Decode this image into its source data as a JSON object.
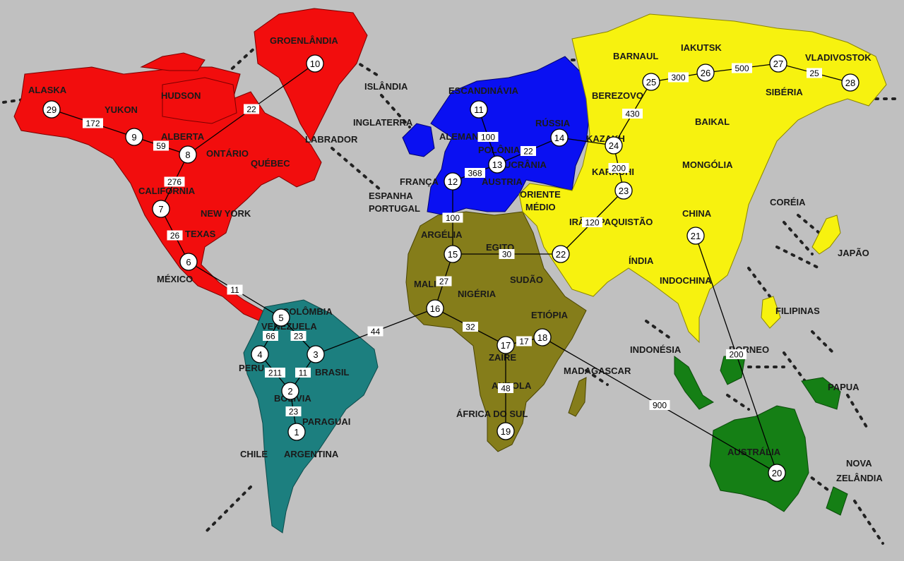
{
  "colors": {
    "ocean": "#c0c0c0",
    "north_america": "#f20d0d",
    "south_america": "#1c7f7f",
    "europe": "#0a10f2",
    "africa": "#857d1a",
    "asia": "#f7f20f",
    "oceania": "#157f15",
    "label_text": "#1a1a1a",
    "route_line": "#000000",
    "node_fill": "#ffffff"
  },
  "territories": [
    {
      "id": "alaska",
      "label": "ALASKA"
    },
    {
      "id": "yukon",
      "label": "YUKON"
    },
    {
      "id": "hudson",
      "label": "HUDSON"
    },
    {
      "id": "groenlandia",
      "label": "GROENLÂNDIA"
    },
    {
      "id": "alberta",
      "label": "ALBERTA"
    },
    {
      "id": "ontario",
      "label": "ONTÁRIO"
    },
    {
      "id": "quebec",
      "label": "QUÉBEC"
    },
    {
      "id": "labrador",
      "label": "LABRADOR"
    },
    {
      "id": "california",
      "label": "CALIFÓRNIA"
    },
    {
      "id": "new_york",
      "label": "NEW YORK"
    },
    {
      "id": "texas",
      "label": "TEXAS"
    },
    {
      "id": "mexico",
      "label": "MÉXICO"
    },
    {
      "id": "colombia",
      "label": "COLÔMBIA"
    },
    {
      "id": "venezuela",
      "label": "VENEZUELA"
    },
    {
      "id": "peru",
      "label": "PERU"
    },
    {
      "id": "brasil",
      "label": "BRASIL"
    },
    {
      "id": "bolivia",
      "label": "BOLÍVIA"
    },
    {
      "id": "paraguai",
      "label": "PARAGUAI"
    },
    {
      "id": "chile",
      "label": "CHILE"
    },
    {
      "id": "argentina",
      "label": "ARGENTINA"
    },
    {
      "id": "islandia",
      "label": "ISLÂNDIA"
    },
    {
      "id": "inglaterra",
      "label": "INGLATERRA"
    },
    {
      "id": "escandinavia",
      "label": "ESCANDINÁVIA"
    },
    {
      "id": "alemanha",
      "label": "ALEMANHA"
    },
    {
      "id": "polonia",
      "label": "POLÔNIA"
    },
    {
      "id": "ucrania",
      "label": "UCRÂNIA"
    },
    {
      "id": "austria",
      "label": "ÁUSTRIA"
    },
    {
      "id": "franca",
      "label": "FRANÇA"
    },
    {
      "id": "espanha",
      "label": "ESPANHA"
    },
    {
      "id": "portugal",
      "label": "PORTUGAL"
    },
    {
      "id": "russia",
      "label": "RÚSSIA"
    },
    {
      "id": "argelia",
      "label": "ARGÉLIA"
    },
    {
      "id": "egito",
      "label": "EGITO"
    },
    {
      "id": "mali",
      "label": "MALI"
    },
    {
      "id": "nigeria",
      "label": "NIGÉRIA"
    },
    {
      "id": "sudao",
      "label": "SUDÃO"
    },
    {
      "id": "etiopia",
      "label": "ETIÓPIA"
    },
    {
      "id": "zaire",
      "label": "ZAIRE"
    },
    {
      "id": "angola",
      "label": "ANGOLA"
    },
    {
      "id": "africa_do_sul",
      "label": "ÁFRICA DO SUL"
    },
    {
      "id": "madagascar",
      "label": "MADAGASCAR"
    },
    {
      "id": "barnaul",
      "label": "BARNAUL"
    },
    {
      "id": "iakutsk",
      "label": "IAKUTSK"
    },
    {
      "id": "vladivostok",
      "label": "VLADIVOSTOK"
    },
    {
      "id": "siberia",
      "label": "SIBÉRIA"
    },
    {
      "id": "berezovo",
      "label": "BEREZOVO"
    },
    {
      "id": "kazakh",
      "label": "KAZAKH"
    },
    {
      "id": "karachi",
      "label": "KARACHI"
    },
    {
      "id": "baikal",
      "label": "BAIKAL"
    },
    {
      "id": "mongolia",
      "label": "MONGÓLIA"
    },
    {
      "id": "oriente_medio_1",
      "label": "ORIENTE"
    },
    {
      "id": "oriente_medio_2",
      "label": "MÉDIO"
    },
    {
      "id": "ira",
      "label": "IRÃ"
    },
    {
      "id": "paquistao",
      "label": "PAQUISTÃO"
    },
    {
      "id": "china",
      "label": "CHINA"
    },
    {
      "id": "coreia",
      "label": "CORÉIA"
    },
    {
      "id": "japao",
      "label": "JAPÃO"
    },
    {
      "id": "india",
      "label": "ÍNDIA"
    },
    {
      "id": "indochina",
      "label": "INDOCHINA"
    },
    {
      "id": "filipinas",
      "label": "FILIPINAS"
    },
    {
      "id": "indonesia",
      "label": "INDONÉSIA"
    },
    {
      "id": "borneo",
      "label": "BORNEO"
    },
    {
      "id": "papua",
      "label": "PAPUA"
    },
    {
      "id": "australia",
      "label": "AUSTRÁLIA"
    },
    {
      "id": "nova_zelandia_1",
      "label": "NOVA"
    },
    {
      "id": "nova_zelandia_2",
      "label": "ZELÂNDIA"
    }
  ],
  "nodes": [
    {
      "id": "1",
      "label": "1"
    },
    {
      "id": "2",
      "label": "2"
    },
    {
      "id": "3",
      "label": "3"
    },
    {
      "id": "4",
      "label": "4"
    },
    {
      "id": "5",
      "label": "5"
    },
    {
      "id": "6",
      "label": "6"
    },
    {
      "id": "7",
      "label": "7"
    },
    {
      "id": "8",
      "label": "8"
    },
    {
      "id": "9",
      "label": "9"
    },
    {
      "id": "10",
      "label": "10"
    },
    {
      "id": "11",
      "label": "11"
    },
    {
      "id": "12",
      "label": "12"
    },
    {
      "id": "13",
      "label": "13"
    },
    {
      "id": "14",
      "label": "14"
    },
    {
      "id": "15",
      "label": "15"
    },
    {
      "id": "16",
      "label": "16"
    },
    {
      "id": "17",
      "label": "17"
    },
    {
      "id": "18",
      "label": "18"
    },
    {
      "id": "19",
      "label": "19"
    },
    {
      "id": "20",
      "label": "20"
    },
    {
      "id": "21",
      "label": "21"
    },
    {
      "id": "22",
      "label": "22"
    },
    {
      "id": "23",
      "label": "23"
    },
    {
      "id": "24",
      "label": "24"
    },
    {
      "id": "25",
      "label": "25"
    },
    {
      "id": "26",
      "label": "26"
    },
    {
      "id": "27",
      "label": "27"
    },
    {
      "id": "28",
      "label": "28"
    },
    {
      "id": "29",
      "label": "29"
    }
  ],
  "edges": [
    {
      "from": "1",
      "to": "2",
      "weight": "23"
    },
    {
      "from": "2",
      "to": "3",
      "weight": "11"
    },
    {
      "from": "2",
      "to": "4",
      "weight": "211"
    },
    {
      "from": "4",
      "to": "5",
      "weight": "66"
    },
    {
      "from": "5",
      "to": "3",
      "weight": "23"
    },
    {
      "from": "5",
      "to": "6",
      "weight": "11"
    },
    {
      "from": "3",
      "to": "16",
      "weight": "44"
    },
    {
      "from": "6",
      "to": "7",
      "weight": "26"
    },
    {
      "from": "7",
      "to": "8",
      "weight": "276"
    },
    {
      "from": "8",
      "to": "9",
      "weight": "59"
    },
    {
      "from": "9",
      "to": "29",
      "weight": "172"
    },
    {
      "from": "8",
      "to": "10",
      "weight": "22"
    },
    {
      "from": "11",
      "to": "13",
      "weight": "100"
    },
    {
      "from": "12",
      "to": "13",
      "weight": "368"
    },
    {
      "from": "13",
      "to": "14",
      "weight": "22"
    },
    {
      "from": "12",
      "to": "15",
      "weight": "100"
    },
    {
      "from": "15",
      "to": "22",
      "weight": "30"
    },
    {
      "from": "15",
      "to": "16",
      "weight": "27"
    },
    {
      "from": "16",
      "to": "17",
      "weight": "32"
    },
    {
      "from": "17",
      "to": "18",
      "weight": "17"
    },
    {
      "from": "17",
      "to": "19",
      "weight": "48"
    },
    {
      "from": "18",
      "to": "20",
      "weight": "900"
    },
    {
      "from": "21",
      "to": "20",
      "weight": "200"
    },
    {
      "from": "22",
      "to": "23",
      "weight": "120"
    },
    {
      "from": "23",
      "to": "24",
      "weight": "200"
    },
    {
      "from": "14",
      "to": "24",
      "weight": ""
    },
    {
      "from": "24",
      "to": "25",
      "weight": "430"
    },
    {
      "from": "25",
      "to": "26",
      "weight": "300"
    },
    {
      "from": "26",
      "to": "27",
      "weight": "500"
    },
    {
      "from": "27",
      "to": "28",
      "weight": "25"
    }
  ]
}
